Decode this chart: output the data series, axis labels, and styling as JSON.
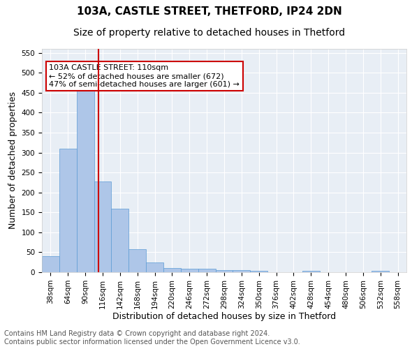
{
  "title_line1": "103A, CASTLE STREET, THETFORD, IP24 2DN",
  "title_line2": "Size of property relative to detached houses in Thetford",
  "xlabel": "Distribution of detached houses by size in Thetford",
  "ylabel": "Number of detached properties",
  "bar_labels": [
    "38sqm",
    "64sqm",
    "90sqm",
    "116sqm",
    "142sqm",
    "168sqm",
    "194sqm",
    "220sqm",
    "246sqm",
    "272sqm",
    "298sqm",
    "324sqm",
    "350sqm",
    "376sqm",
    "402sqm",
    "428sqm",
    "454sqm",
    "480sqm",
    "506sqm",
    "532sqm",
    "558sqm"
  ],
  "bar_values": [
    40,
    310,
    455,
    228,
    160,
    58,
    25,
    11,
    8,
    8,
    5,
    5,
    4,
    0,
    0,
    4,
    0,
    0,
    0,
    3,
    0
  ],
  "bar_color": "#aec6e8",
  "bar_edge_color": "#5b9bd5",
  "bar_width": 1.0,
  "vline_x": 2.75,
  "vline_color": "#cc0000",
  "annotation_text": "103A CASTLE STREET: 110sqm\n← 52% of detached houses are smaller (672)\n47% of semi-detached houses are larger (601) →",
  "annotation_box_color": "#ffffff",
  "annotation_box_edge": "#cc0000",
  "ylim": [
    0,
    560
  ],
  "yticks": [
    0,
    50,
    100,
    150,
    200,
    250,
    300,
    350,
    400,
    450,
    500,
    550
  ],
  "background_color": "#e8eef5",
  "grid_color": "#ffffff",
  "footer_text": "Contains HM Land Registry data © Crown copyright and database right 2024.\nContains public sector information licensed under the Open Government Licence v3.0.",
  "title_fontsize": 11,
  "subtitle_fontsize": 10,
  "xlabel_fontsize": 9,
  "ylabel_fontsize": 9,
  "tick_fontsize": 7.5,
  "annotation_fontsize": 8,
  "footer_fontsize": 7
}
